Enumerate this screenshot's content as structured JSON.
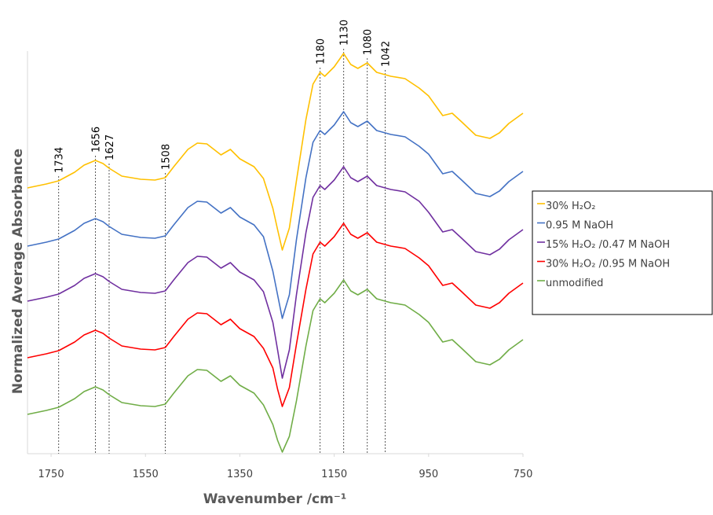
{
  "chart_data": {
    "type": "line",
    "xlabel": "Wavenumber /cm⁻¹",
    "ylabel": "Normalized Average Absorbance",
    "xlim": [
      1800,
      750
    ],
    "xticks": [
      1750,
      1550,
      1350,
      1150,
      950,
      750
    ],
    "ylim": [
      0,
      512
    ],
    "peak_lines": [
      1734,
      1656,
      1627,
      1508,
      1180,
      1130,
      1080,
      1042
    ],
    "x": [
      1800,
      1760,
      1734,
      1700,
      1680,
      1656,
      1640,
      1627,
      1600,
      1560,
      1530,
      1508,
      1490,
      1460,
      1440,
      1420,
      1390,
      1370,
      1350,
      1320,
      1300,
      1280,
      1270,
      1260,
      1245,
      1230,
      1210,
      1195,
      1180,
      1170,
      1150,
      1130,
      1115,
      1100,
      1080,
      1060,
      1042,
      1030,
      1000,
      970,
      950,
      920,
      900,
      880,
      850,
      820,
      800,
      780,
      750
    ],
    "series": [
      {
        "name": "30% H₂O₂",
        "color": "#ffc000",
        "values": [
          338,
          343,
          347,
          358,
          367,
          373,
          369,
          363,
          353,
          349,
          348,
          351,
          365,
          387,
          395,
          394,
          380,
          387,
          375,
          365,
          350,
          312,
          285,
          259,
          287,
          347,
          425,
          470,
          485,
          480,
          492,
          509,
          495,
          490,
          497,
          485,
          482,
          480,
          477,
          465,
          455,
          430,
          433,
          422,
          405,
          401,
          408,
          420,
          433
        ]
      },
      {
        "name": "0.95 M NaOH",
        "color": "#4472c4",
        "values": [
          264,
          269,
          273,
          284,
          293,
          299,
          295,
          289,
          279,
          275,
          274,
          277,
          291,
          313,
          321,
          320,
          306,
          313,
          301,
          291,
          276,
          232,
          202,
          172,
          202,
          272,
          351,
          396,
          411,
          406,
          418,
          435,
          421,
          416,
          423,
          411,
          408,
          406,
          403,
          391,
          381,
          356,
          359,
          348,
          331,
          327,
          334,
          346,
          359
        ]
      },
      {
        "name": "15% H₂O₂ /0.47 M NaOH",
        "color": "#7030a0",
        "values": [
          194,
          199,
          203,
          214,
          223,
          229,
          225,
          219,
          209,
          205,
          204,
          207,
          221,
          243,
          251,
          250,
          236,
          243,
          231,
          221,
          206,
          167,
          132,
          96,
          132,
          202,
          281,
          326,
          341,
          336,
          348,
          365,
          351,
          346,
          353,
          341,
          338,
          336,
          333,
          321,
          307,
          282,
          285,
          274,
          257,
          253,
          260,
          272,
          285
        ]
      },
      {
        "name": "30% H₂O₂ /0.95 M NaOH",
        "color": "#ff0000",
        "values": [
          122,
          127,
          131,
          142,
          151,
          157,
          153,
          147,
          137,
          133,
          132,
          135,
          149,
          171,
          179,
          178,
          164,
          171,
          159,
          149,
          134,
          109,
          82,
          60,
          84,
          139,
          209,
          254,
          269,
          264,
          276,
          293,
          279,
          274,
          281,
          269,
          266,
          264,
          261,
          249,
          239,
          214,
          217,
          206,
          189,
          185,
          192,
          204,
          217
        ]
      },
      {
        "name": "unmodified",
        "color": "#70ad47",
        "values": [
          50,
          55,
          59,
          70,
          79,
          85,
          81,
          75,
          65,
          61,
          60,
          63,
          77,
          99,
          107,
          106,
          92,
          99,
          87,
          77,
          62,
          37,
          17,
          2,
          22,
          67,
          137,
          182,
          197,
          192,
          204,
          221,
          207,
          202,
          209,
          197,
          194,
          192,
          189,
          177,
          167,
          142,
          145,
          134,
          117,
          113,
          120,
          132,
          145
        ]
      }
    ]
  }
}
